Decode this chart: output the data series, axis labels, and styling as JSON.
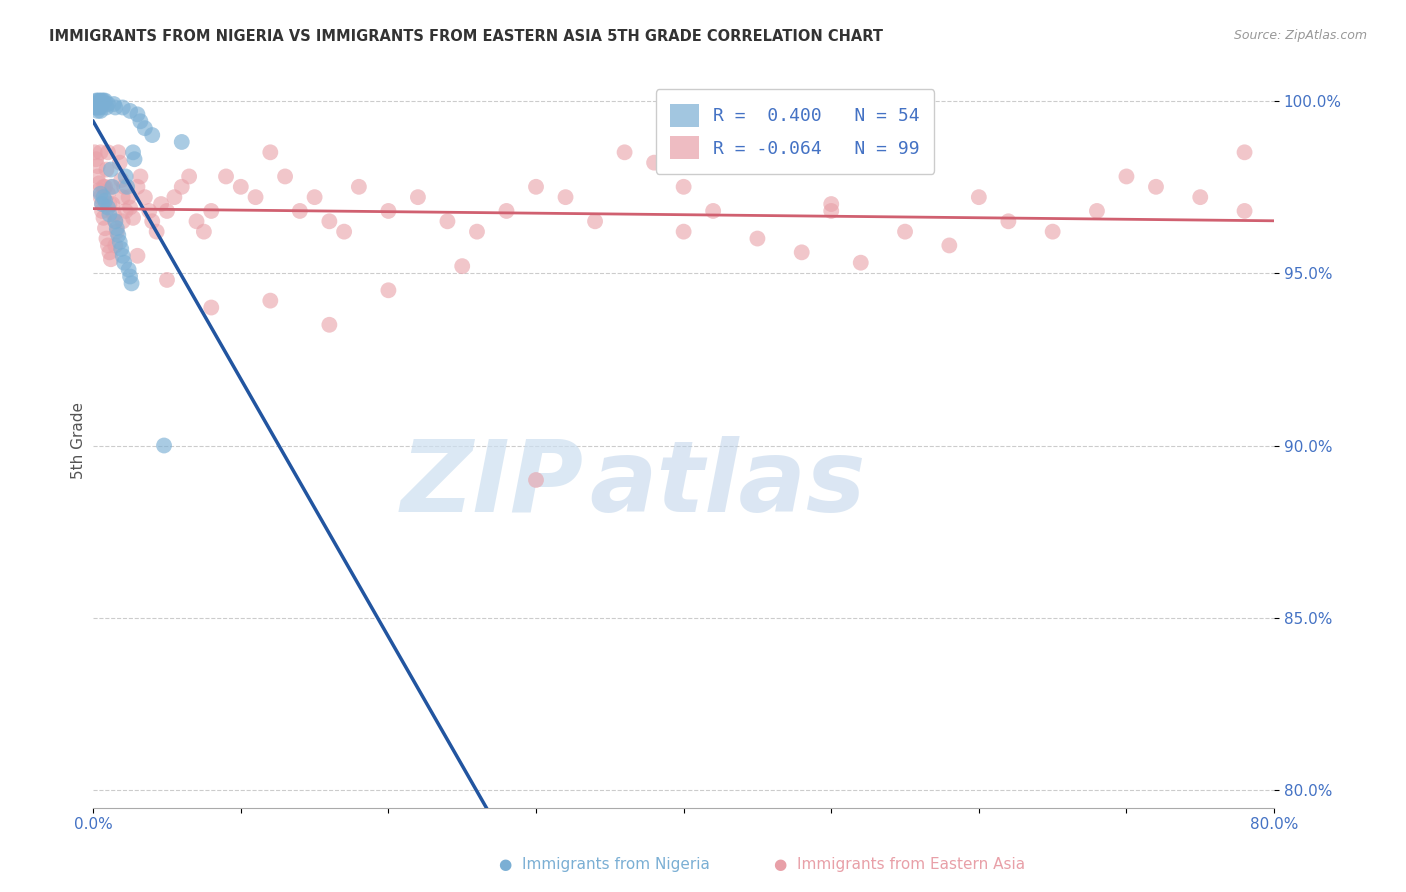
{
  "title": "IMMIGRANTS FROM NIGERIA VS IMMIGRANTS FROM EASTERN ASIA 5TH GRADE CORRELATION CHART",
  "source": "Source: ZipAtlas.com",
  "ylabel": "5th Grade",
  "xlim": [
    0.0,
    0.8
  ],
  "ylim": [
    0.795,
    1.008
  ],
  "blue_color": "#7bafd4",
  "pink_color": "#e8a0a8",
  "blue_line_color": "#2255a0",
  "pink_line_color": "#d06070",
  "legend_blue_R": "0.400",
  "legend_blue_N": "54",
  "legend_pink_R": "-0.064",
  "legend_pink_N": "99",
  "watermark_zip": "ZIP",
  "watermark_atlas": "atlas",
  "ytick_vals": [
    0.8,
    0.85,
    0.9,
    0.95,
    1.0
  ],
  "xtick_vals": [
    0.0,
    0.1,
    0.2,
    0.3,
    0.4,
    0.5,
    0.6,
    0.7,
    0.8
  ],
  "blue_x": [
    0.001,
    0.001,
    0.002,
    0.002,
    0.002,
    0.003,
    0.003,
    0.003,
    0.003,
    0.004,
    0.004,
    0.004,
    0.005,
    0.005,
    0.005,
    0.005,
    0.005,
    0.006,
    0.006,
    0.006,
    0.007,
    0.007,
    0.008,
    0.008,
    0.009,
    0.01,
    0.01,
    0.011,
    0.012,
    0.013,
    0.014,
    0.015,
    0.015,
    0.016,
    0.017,
    0.018,
    0.019,
    0.02,
    0.02,
    0.021,
    0.022,
    0.023,
    0.024,
    0.025,
    0.025,
    0.026,
    0.027,
    0.028,
    0.03,
    0.032,
    0.035,
    0.04,
    0.048,
    0.06
  ],
  "blue_y": [
    0.999,
    0.998,
    1.0,
    0.999,
    0.998,
    1.0,
    0.999,
    0.998,
    0.997,
    1.0,
    0.999,
    0.998,
    1.0,
    0.999,
    0.998,
    0.997,
    0.973,
    1.0,
    0.999,
    0.97,
    1.0,
    0.972,
    1.0,
    0.971,
    0.998,
    0.999,
    0.969,
    0.967,
    0.98,
    0.975,
    0.999,
    0.998,
    0.965,
    0.963,
    0.961,
    0.959,
    0.957,
    0.998,
    0.955,
    0.953,
    0.978,
    0.975,
    0.951,
    0.997,
    0.949,
    0.947,
    0.985,
    0.983,
    0.996,
    0.994,
    0.992,
    0.99,
    0.9,
    0.988
  ],
  "pink_x": [
    0.001,
    0.002,
    0.003,
    0.003,
    0.004,
    0.004,
    0.005,
    0.005,
    0.006,
    0.006,
    0.007,
    0.007,
    0.008,
    0.008,
    0.009,
    0.009,
    0.01,
    0.01,
    0.011,
    0.011,
    0.012,
    0.012,
    0.013,
    0.014,
    0.015,
    0.016,
    0.017,
    0.018,
    0.019,
    0.02,
    0.021,
    0.022,
    0.024,
    0.025,
    0.027,
    0.03,
    0.032,
    0.035,
    0.038,
    0.04,
    0.043,
    0.046,
    0.05,
    0.055,
    0.06,
    0.065,
    0.07,
    0.075,
    0.08,
    0.09,
    0.1,
    0.11,
    0.12,
    0.13,
    0.14,
    0.15,
    0.16,
    0.17,
    0.18,
    0.2,
    0.22,
    0.24,
    0.26,
    0.28,
    0.3,
    0.32,
    0.34,
    0.36,
    0.38,
    0.4,
    0.42,
    0.45,
    0.48,
    0.5,
    0.52,
    0.55,
    0.58,
    0.62,
    0.65,
    0.68,
    0.72,
    0.75,
    0.78,
    0.01,
    0.015,
    0.02,
    0.03,
    0.05,
    0.08,
    0.12,
    0.16,
    0.2,
    0.25,
    0.3,
    0.4,
    0.5,
    0.6,
    0.7,
    0.78
  ],
  "pink_y": [
    0.985,
    0.983,
    0.981,
    0.978,
    0.976,
    0.974,
    0.972,
    0.985,
    0.97,
    0.968,
    0.966,
    0.975,
    0.975,
    0.963,
    0.96,
    0.98,
    0.973,
    0.958,
    0.97,
    0.956,
    0.975,
    0.954,
    0.97,
    0.967,
    0.965,
    0.962,
    0.985,
    0.982,
    0.977,
    0.972,
    0.975,
    0.968,
    0.972,
    0.969,
    0.966,
    0.975,
    0.978,
    0.972,
    0.968,
    0.965,
    0.962,
    0.97,
    0.968,
    0.972,
    0.975,
    0.978,
    0.965,
    0.962,
    0.968,
    0.978,
    0.975,
    0.972,
    0.985,
    0.978,
    0.968,
    0.972,
    0.965,
    0.962,
    0.975,
    0.968,
    0.972,
    0.965,
    0.962,
    0.968,
    0.975,
    0.972,
    0.965,
    0.985,
    0.982,
    0.975,
    0.968,
    0.96,
    0.956,
    0.97,
    0.953,
    0.962,
    0.958,
    0.965,
    0.962,
    0.968,
    0.975,
    0.972,
    0.968,
    0.985,
    0.958,
    0.965,
    0.955,
    0.948,
    0.94,
    0.942,
    0.935,
    0.945,
    0.952,
    0.89,
    0.962,
    0.968,
    0.972,
    0.978,
    0.985
  ]
}
